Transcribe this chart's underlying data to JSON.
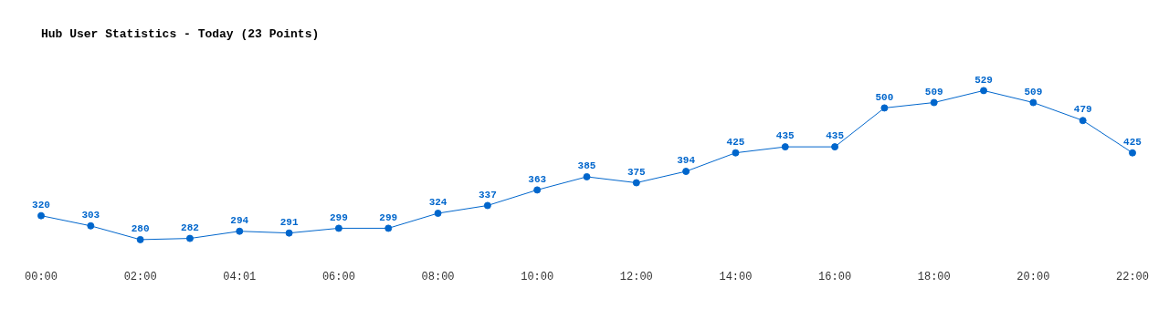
{
  "chart_data": {
    "type": "line",
    "title": "Hub User Statistics - Today (23 Points)",
    "categories": [
      "00:00",
      null,
      "02:00",
      null,
      "04:01",
      null,
      "06:00",
      null,
      "08:00",
      null,
      "10:00",
      null,
      "12:00",
      null,
      "14:00",
      null,
      "16:00",
      null,
      "18:00",
      null,
      "20:00",
      null,
      "22:00"
    ],
    "series": [
      {
        "color": "#0066cc",
        "values": [
          320,
          303,
          280,
          282,
          294,
          291,
          299,
          299,
          324,
          337,
          363,
          385,
          375,
          394,
          425,
          435,
          435,
          500,
          509,
          529,
          509,
          479,
          425
        ]
      }
    ],
    "data_labels": true,
    "marker": "circle",
    "grid": false,
    "legend": false
  }
}
